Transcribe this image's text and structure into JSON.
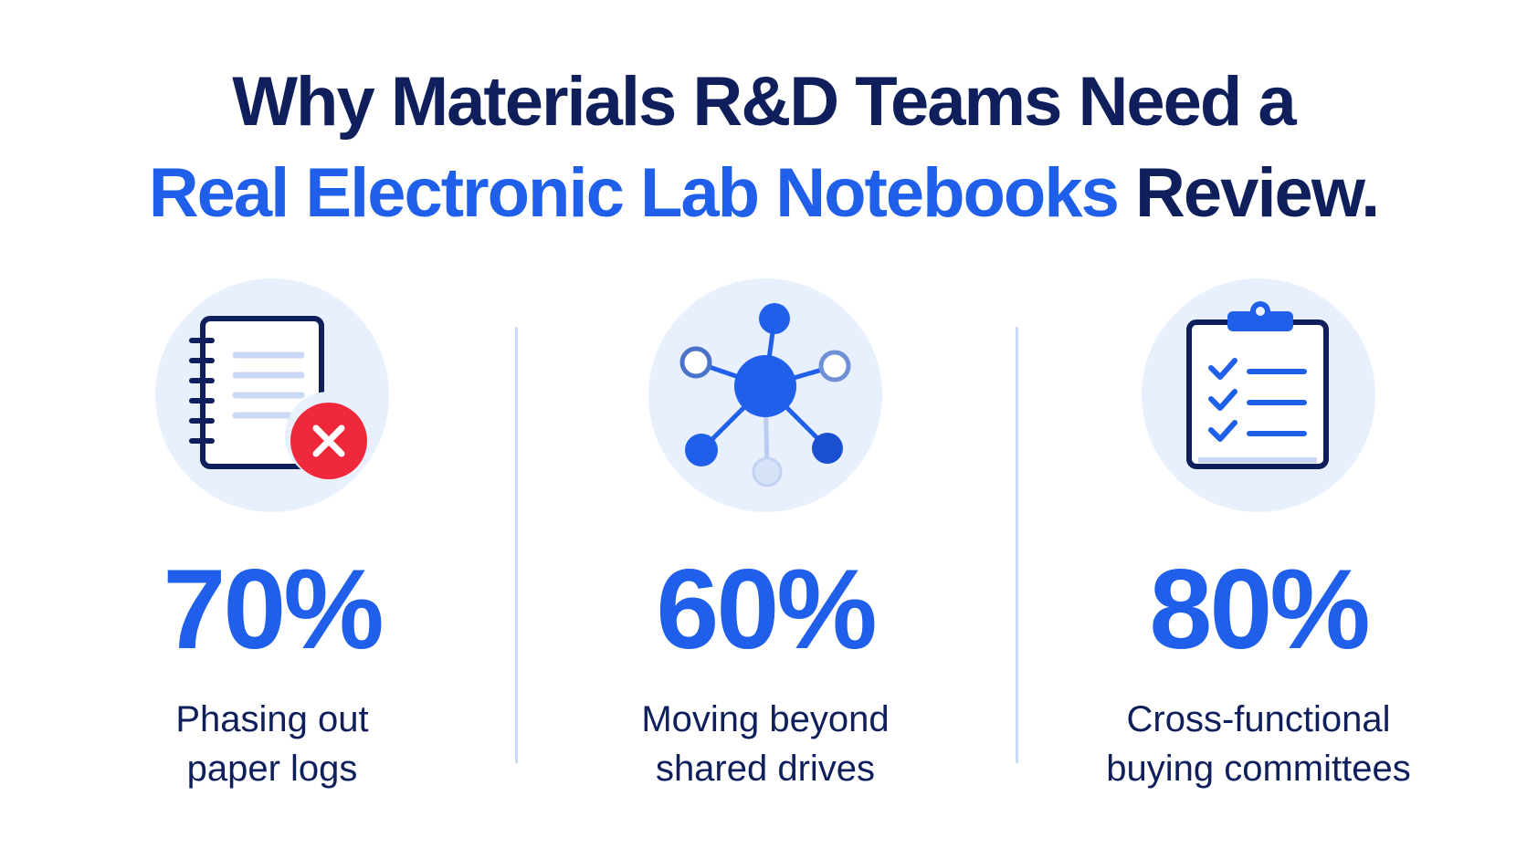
{
  "title": {
    "line1": "Why Materials R&D Teams Need a",
    "line2_accent": "Real Electronic Lab Notebooks",
    "line2_rest": " Review."
  },
  "colors": {
    "navy": "#0f1f5c",
    "accent_blue": "#1f5fea",
    "icon_bg": "#e9f0fd",
    "divider": "#c9d8f5",
    "alert_red": "#f0283c"
  },
  "stats": [
    {
      "icon": "notebook-cross-icon",
      "value": "70%",
      "label_line1": "Phasing out",
      "label_line2": "paper logs"
    },
    {
      "icon": "network-nodes-icon",
      "value": "60%",
      "label_line1": "Moving beyond",
      "label_line2": "shared drives"
    },
    {
      "icon": "clipboard-checklist-icon",
      "value": "80%",
      "label_line1": "Cross-functional",
      "label_line2": "buying committees"
    }
  ]
}
